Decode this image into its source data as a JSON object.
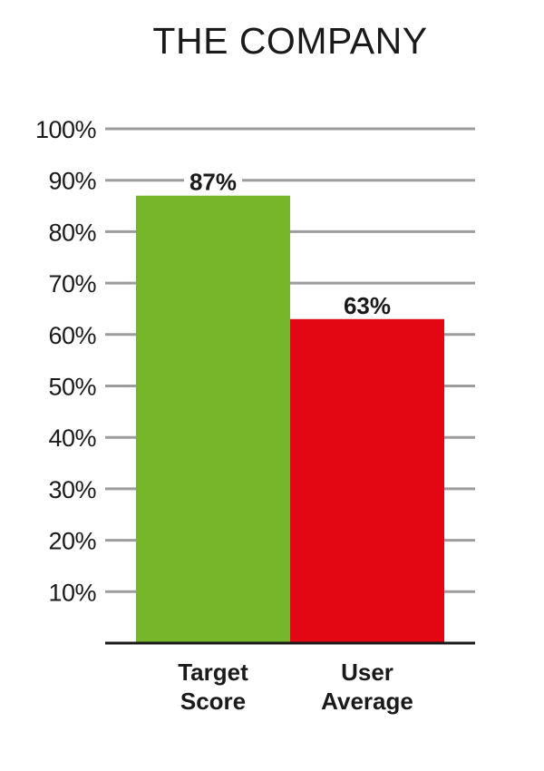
{
  "chart_data": {
    "type": "bar",
    "title": "THE COMPANY",
    "categories": [
      [
        "Target",
        "Score"
      ],
      [
        "User",
        "Average"
      ]
    ],
    "values": [
      87,
      63
    ],
    "data_labels": [
      "87%",
      "63%"
    ],
    "colors": [
      "#77b52a",
      "#e30613"
    ],
    "ylim": [
      0,
      100
    ],
    "yticks": [
      10,
      20,
      30,
      40,
      50,
      60,
      70,
      80,
      90,
      100
    ],
    "ytick_labels": [
      "10%",
      "20%",
      "30%",
      "40%",
      "50%",
      "60%",
      "70%",
      "80%",
      "90%",
      "100%"
    ],
    "grid": true,
    "xlabel": "",
    "ylabel": ""
  }
}
